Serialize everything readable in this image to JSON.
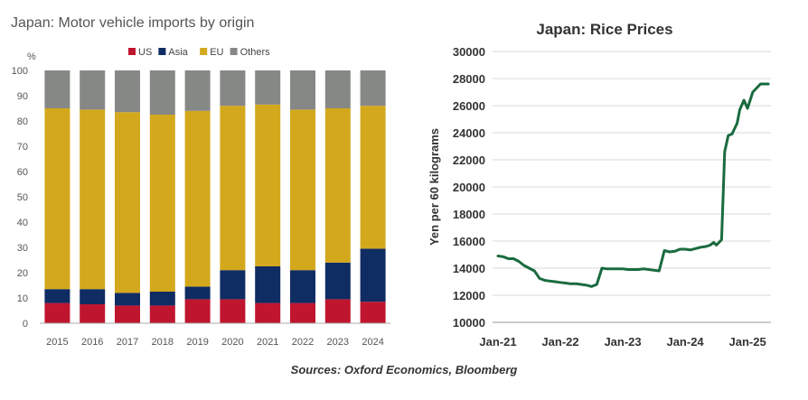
{
  "source": "Sources: Oxford Economics, Bloomberg",
  "chart_data": [
    {
      "type": "bar",
      "stacked": true,
      "title": "Japan: Motor vehicle imports by origin",
      "ylabel": "%",
      "ylim": [
        0,
        100
      ],
      "yticks": [
        0,
        10,
        20,
        30,
        40,
        50,
        60,
        70,
        80,
        90,
        100
      ],
      "categories": [
        "2015",
        "2016",
        "2017",
        "2018",
        "2019",
        "2020",
        "2021",
        "2022",
        "2023",
        "2024"
      ],
      "legend": "top",
      "series": [
        {
          "name": "US",
          "color": "#c0152e",
          "values": [
            8,
            7.5,
            7,
            7,
            9.5,
            9.5,
            8,
            8,
            9.5,
            8.5
          ]
        },
        {
          "name": "Asia",
          "color": "#0f2c63",
          "values": [
            5.5,
            6,
            5,
            5.5,
            5,
            11.5,
            14.5,
            13,
            14.5,
            21
          ]
        },
        {
          "name": "EU",
          "color": "#d4a81c",
          "values": [
            71.5,
            71,
            71.5,
            70,
            69.5,
            65,
            64,
            63.5,
            61,
            56.5
          ]
        },
        {
          "name": "Others",
          "color": "#868886",
          "values": [
            15,
            15.5,
            16.5,
            17.5,
            16,
            14,
            13.5,
            15.5,
            15,
            14
          ]
        }
      ]
    },
    {
      "type": "line",
      "title": "Japan:  Rice Prices",
      "xlabel": "",
      "ylabel": "Yen per 60 kilograms",
      "ylim": [
        10000,
        30000
      ],
      "yticks": [
        10000,
        12000,
        14000,
        16000,
        18000,
        20000,
        22000,
        24000,
        26000,
        28000,
        30000
      ],
      "xtick_labels": [
        "Jan-21",
        "Jan-22",
        "Jan-23",
        "Jan-24",
        "Jan-25"
      ],
      "xtick_positions": [
        0,
        12,
        24,
        36,
        48
      ],
      "xlim": [
        0,
        52.5
      ],
      "color": "#1a6b3f",
      "series": [
        {
          "name": "Rice price",
          "x": [
            0,
            1,
            2,
            3,
            4,
            5,
            6,
            7,
            8,
            9,
            10,
            11,
            12,
            13,
            14,
            15,
            16,
            17,
            18,
            19,
            20,
            21,
            22,
            23,
            24,
            25,
            26,
            27,
            28,
            29,
            30,
            31,
            32,
            33,
            34,
            35,
            36,
            37,
            38,
            39,
            40,
            40.8,
            41.5,
            42,
            43,
            43.6,
            44.3,
            45,
            46,
            46.5,
            47.3,
            48,
            49,
            50,
            50.5,
            51,
            52
          ],
          "y": [
            14900,
            14850,
            14700,
            14700,
            14500,
            14200,
            14000,
            13800,
            13250,
            13100,
            13050,
            13000,
            12950,
            12900,
            12850,
            12850,
            12800,
            12750,
            12650,
            12800,
            14000,
            13950,
            13950,
            13950,
            13950,
            13900,
            13900,
            13900,
            13950,
            13900,
            13850,
            13800,
            15300,
            15200,
            15250,
            15400,
            15400,
            15350,
            15450,
            15550,
            15600,
            15700,
            15900,
            15700,
            16100,
            22600,
            23800,
            23900,
            24700,
            25700,
            26400,
            25800,
            27000,
            27400,
            27600,
            27600,
            27600
          ]
        }
      ]
    }
  ]
}
